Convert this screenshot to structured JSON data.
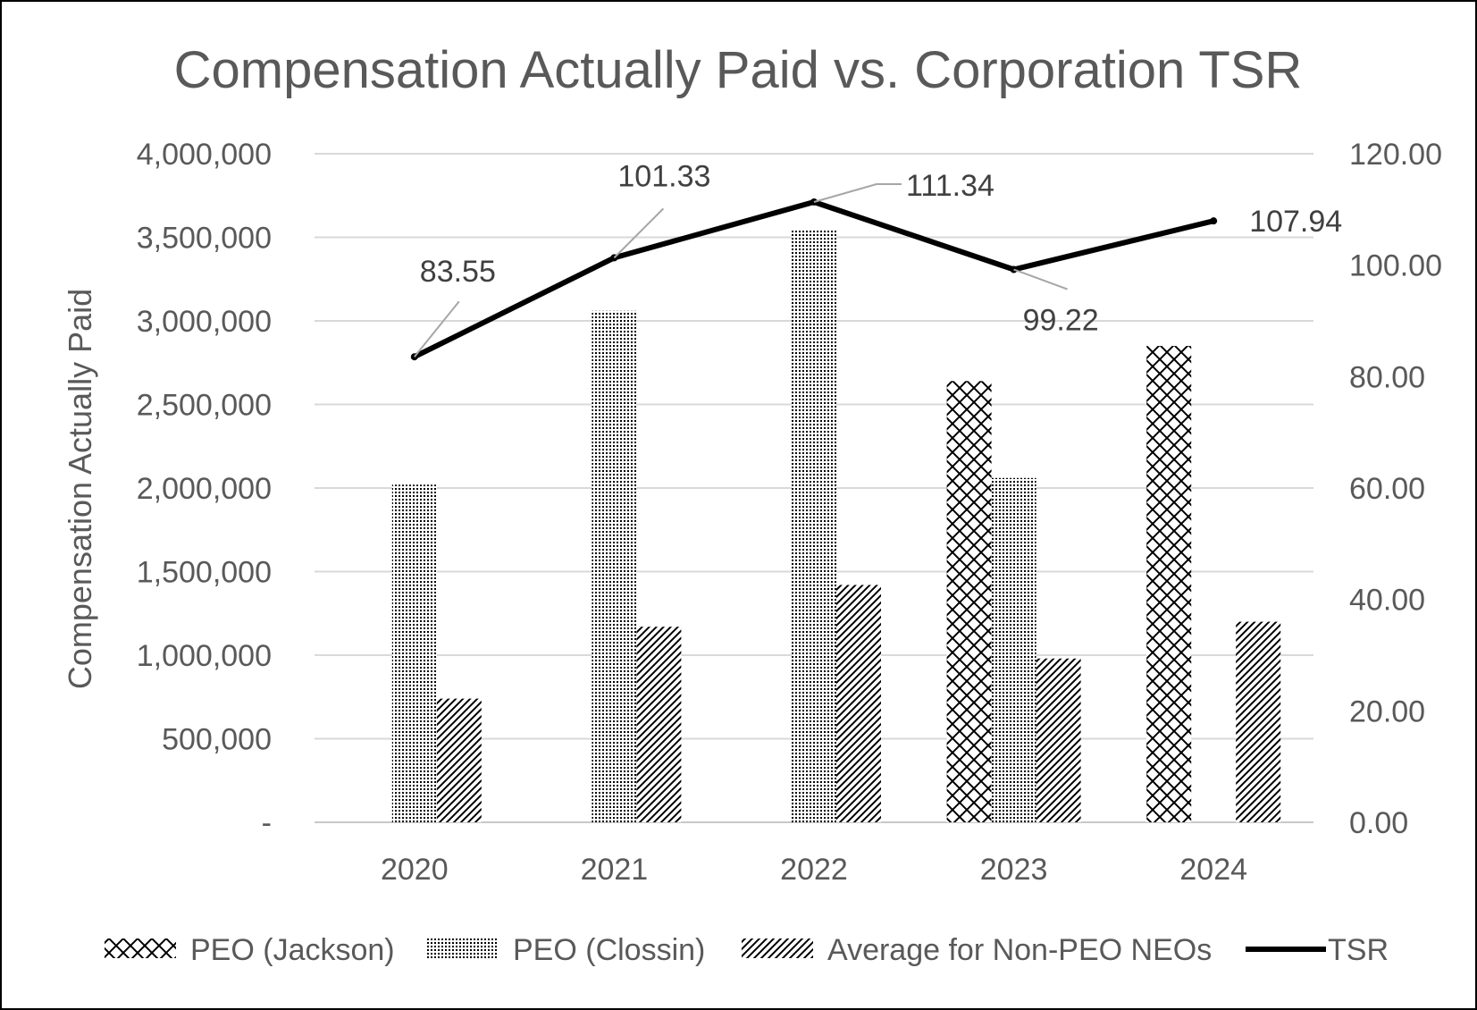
{
  "chart_data": {
    "type": "bar",
    "title": "Compensation Actually Paid vs. Corporation TSR",
    "ylabel": "Compensation Actually Paid",
    "xlabel": "",
    "categories": [
      "2020",
      "2021",
      "2022",
      "2023",
      "2024"
    ],
    "ylim": [
      0,
      4000000
    ],
    "y2lim": [
      0,
      120
    ],
    "y_ticks": [
      "-",
      "500,000",
      "1,000,000",
      "1,500,000",
      "2,000,000",
      "2,500,000",
      "3,000,000",
      "3,500,000",
      "4,000,000"
    ],
    "y2_ticks": [
      "0.00",
      "20.00",
      "40.00",
      "60.00",
      "80.00",
      "100.00",
      "120.00"
    ],
    "grid": true,
    "legend_position": "bottom",
    "series": [
      {
        "name": "PEO (Jackson)",
        "kind": "bar",
        "pattern": "crosshatch",
        "values": [
          null,
          null,
          null,
          2640000,
          2850000
        ]
      },
      {
        "name": "PEO (Clossin)",
        "kind": "bar",
        "pattern": "dots",
        "values": [
          2020000,
          3060000,
          3540000,
          2060000,
          null
        ]
      },
      {
        "name": "Average for Non-PEO NEOs",
        "kind": "bar",
        "pattern": "diagonal",
        "values": [
          740000,
          1170000,
          1420000,
          980000,
          1200000
        ]
      },
      {
        "name": "TSR",
        "kind": "line",
        "axis": "secondary",
        "values": [
          83.55,
          101.33,
          111.34,
          99.22,
          107.94
        ],
        "labels": [
          "83.55",
          "101.33",
          "111.34",
          "99.22",
          "107.94"
        ]
      }
    ]
  }
}
